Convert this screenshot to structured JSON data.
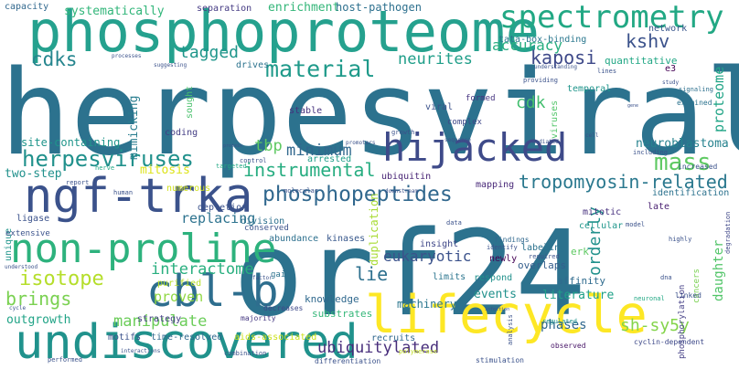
{
  "words": [
    {
      "text": "herpesviral",
      "color": "#2c728e"
    },
    {
      "text": "orf24",
      "color": "#2c728e"
    },
    {
      "text": "lifecycle",
      "color": "#fde725"
    },
    {
      "text": "phosphoproteome",
      "color": "#25a18e"
    },
    {
      "text": "undiscovered",
      "color": "#20928c"
    },
    {
      "text": "ngf-trka",
      "color": "#3b528b"
    },
    {
      "text": "non-proline",
      "color": "#2db27d"
    },
    {
      "text": "hijacked",
      "color": "#3e4a89"
    },
    {
      "text": "cbl-b",
      "color": "#2e6e8e"
    },
    {
      "text": "spectrometry",
      "color": "#22a884"
    },
    {
      "text": "mass",
      "color": "#5ec962"
    },
    {
      "text": "material",
      "color": "#1f9a8a"
    },
    {
      "text": "phosphopeptides",
      "color": "#31688e"
    },
    {
      "text": "herpesviruses",
      "color": "#21918c"
    },
    {
      "text": "isotope",
      "color": "#b5de2b"
    },
    {
      "text": "brings",
      "color": "#7ad151"
    },
    {
      "text": "tropomyosin-related",
      "color": "#2a788e"
    },
    {
      "text": "instrumental",
      "color": "#27ad81"
    },
    {
      "text": "orderly",
      "color": "#21918c"
    },
    {
      "text": "interactome",
      "color": "#29af7f"
    },
    {
      "text": "manipulate",
      "color": "#6ccd5a"
    },
    {
      "text": "proven",
      "color": "#90d743"
    },
    {
      "text": "ubiquitylated",
      "color": "#472d7b"
    },
    {
      "text": "sh-sy5y",
      "color": "#84d44b"
    },
    {
      "text": "kshv",
      "color": "#3b528b"
    },
    {
      "text": "kaposi",
      "color": "#3e4989"
    },
    {
      "text": "cdks",
      "color": "#25858e"
    },
    {
      "text": "tagged",
      "color": "#1f968b"
    },
    {
      "text": "neurites",
      "color": "#1f9e89"
    },
    {
      "text": "accuracy",
      "color": "#28ae80"
    },
    {
      "text": "cdk",
      "color": "#44bf70"
    },
    {
      "text": "minimum",
      "color": "#31688e"
    },
    {
      "text": "eukaryotic",
      "color": "#3b528b"
    },
    {
      "text": "tbp",
      "color": "#5ec962"
    },
    {
      "text": "lie",
      "color": "#2d708e"
    },
    {
      "text": "phases",
      "color": "#31688e"
    },
    {
      "text": "replacing",
      "color": "#2c728e"
    },
    {
      "text": "outgrowth",
      "color": "#20a386"
    },
    {
      "text": "enrichment",
      "color": "#34b679"
    },
    {
      "text": "systematically",
      "color": "#32b67a"
    },
    {
      "text": "mimicking",
      "color": "#287d8e"
    },
    {
      "text": "daughter",
      "color": "#52c569"
    },
    {
      "text": "proteome",
      "color": "#20a486"
    },
    {
      "text": "mitosis",
      "color": "#dde318"
    },
    {
      "text": "neuroblastoma",
      "color": "#26828e"
    },
    {
      "text": "events",
      "color": "#21918c"
    },
    {
      "text": "literature",
      "color": "#1fa188"
    },
    {
      "text": "machinery",
      "color": "#2a768e"
    },
    {
      "text": "duplication",
      "color": "#a8db34"
    },
    {
      "text": "two-step",
      "color": "#21918c"
    },
    {
      "text": "site-containing",
      "color": "#1f958b"
    },
    {
      "text": "quantitative",
      "color": "#22a785"
    },
    {
      "text": "host-pathogen",
      "color": "#2d708e"
    },
    {
      "text": "separation",
      "color": "#443a83"
    },
    {
      "text": "capacity",
      "color": "#31688e"
    },
    {
      "text": "tata-box-binding",
      "color": "#2a778e"
    },
    {
      "text": "network",
      "color": "#39568c"
    },
    {
      "text": "ubiquitin",
      "color": "#482475"
    },
    {
      "text": "mapping",
      "color": "#482878"
    },
    {
      "text": "mitotic",
      "color": "#46307e"
    },
    {
      "text": "cellular",
      "color": "#1f968b"
    },
    {
      "text": "identification",
      "color": "#2c728e"
    },
    {
      "text": "late",
      "color": "#481f70"
    },
    {
      "text": "labeling",
      "color": "#2c728e"
    },
    {
      "text": "overlaps",
      "color": "#355f8d"
    },
    {
      "text": "insight",
      "color": "#3f4788"
    },
    {
      "text": "newly",
      "color": "#440154"
    },
    {
      "text": "limits",
      "color": "#2b758e"
    },
    {
      "text": "respond",
      "color": "#21918c"
    },
    {
      "text": "affinity",
      "color": "#2f6b8e"
    },
    {
      "text": "erk",
      "color": "#5ec962"
    },
    {
      "text": "knowledge",
      "color": "#30698e"
    },
    {
      "text": "substrates",
      "color": "#35b779"
    },
    {
      "text": "recruits",
      "color": "#31688e"
    },
    {
      "text": "time-resolved",
      "color": "#31688e"
    },
    {
      "text": "aids-associated",
      "color": "#cde11d"
    },
    {
      "text": "motifs",
      "color": "#3b528b"
    },
    {
      "text": "strategy",
      "color": "#433e85"
    },
    {
      "text": "abundance",
      "color": "#2d708e"
    },
    {
      "text": "kinases",
      "color": "#38588c"
    },
    {
      "text": "division",
      "color": "#2d708e"
    },
    {
      "text": "purified",
      "color": "#b8de29"
    },
    {
      "text": "depletion",
      "color": "#3b528b"
    },
    {
      "text": "coding",
      "color": "#433d84"
    },
    {
      "text": "sought",
      "color": "#4ac16d"
    },
    {
      "text": "viral",
      "color": "#3b528b"
    },
    {
      "text": "stable",
      "color": "#46327e"
    },
    {
      "text": "arrested",
      "color": "#1f9e89"
    },
    {
      "text": "drives",
      "color": "#2c738e"
    },
    {
      "text": "temporal",
      "color": "#1f958b"
    },
    {
      "text": "e3",
      "color": "#440154"
    },
    {
      "text": "formed",
      "color": "#463480"
    },
    {
      "text": "complex",
      "color": "#3f4889"
    },
    {
      "text": "unique",
      "color": "#1f958b"
    },
    {
      "text": "ligase",
      "color": "#3b528b"
    },
    {
      "text": "extensive",
      "color": "#3b528b"
    },
    {
      "text": "gain",
      "color": "#2c738e"
    },
    {
      "text": "conserved",
      "color": "#3b528b"
    },
    {
      "text": "decreases",
      "color": "#3e4989"
    },
    {
      "text": "majority",
      "color": "#453882"
    },
    {
      "text": "cancers",
      "color": "#7ad151"
    },
    {
      "text": "phosphorylation",
      "color": "#433e85"
    },
    {
      "text": "cyclin-dependent",
      "color": "#3e4989"
    },
    {
      "text": "differentiation",
      "color": "#3b528b"
    },
    {
      "text": "observed",
      "color": "#481668"
    },
    {
      "text": "regulated",
      "color": "#1f948c"
    },
    {
      "text": "neuronal",
      "color": "#22a884"
    },
    {
      "text": "increased",
      "color": "#3b528b"
    },
    {
      "text": "examined",
      "color": "#2c738e"
    },
    {
      "text": "including",
      "color": "#3b528b"
    },
    {
      "text": "signaling",
      "color": "#2d708e"
    },
    {
      "text": "degradation",
      "color": "#3f4788"
    },
    {
      "text": "findings",
      "color": "#31688e"
    },
    {
      "text": "required",
      "color": "#3b528b"
    },
    {
      "text": "highly",
      "color": "#3b528b"
    },
    {
      "text": "analysis",
      "color": "#3b528b"
    },
    {
      "text": "stimulation",
      "color": "#3b528b"
    },
    {
      "text": "performed",
      "color": "#3b528b"
    },
    {
      "text": "combination",
      "color": "#3b528b"
    },
    {
      "text": "interactions",
      "color": "#3b528b"
    },
    {
      "text": "polymerase",
      "color": "#c2df23"
    },
    {
      "text": "understood",
      "color": "#3b528b"
    },
    {
      "text": "numerous",
      "color": "#d0e11c"
    },
    {
      "text": "targeted",
      "color": "#22a884"
    },
    {
      "text": "report",
      "color": "#3b528b"
    },
    {
      "text": "human",
      "color": "#3b528b"
    },
    {
      "text": "nerve",
      "color": "#22a884"
    },
    {
      "text": "control",
      "color": "#3b528b"
    },
    {
      "text": "molecular",
      "color": "#3b528b"
    },
    {
      "text": "downstream",
      "color": "#3b528b"
    },
    {
      "text": "promoters",
      "color": "#3b528b"
    },
    {
      "text": "growth",
      "color": "#3b528b"
    },
    {
      "text": "sequence",
      "color": "#3b528b"
    },
    {
      "text": "mediated",
      "color": "#3b528b"
    },
    {
      "text": "cell",
      "color": "#3b528b"
    },
    {
      "text": "processes",
      "color": "#3b528b"
    },
    {
      "text": "suggesting",
      "color": "#3b528b"
    },
    {
      "text": "providing",
      "color": "#3b528b"
    },
    {
      "text": "understanding",
      "color": "#3b528b"
    },
    {
      "text": "lines",
      "color": "#3b528b"
    },
    {
      "text": "study",
      "color": "#3b528b"
    },
    {
      "text": "gene",
      "color": "#3b528b"
    },
    {
      "text": "viruses",
      "color": "#52c569"
    },
    {
      "text": "data",
      "color": "#3b528b"
    },
    {
      "text": "identify",
      "color": "#3b528b"
    },
    {
      "text": "model",
      "color": "#3b528b"
    },
    {
      "text": "dna",
      "color": "#3b528b"
    },
    {
      "text": "linked",
      "color": "#3b528b"
    },
    {
      "text": "factor",
      "color": "#3b528b"
    },
    {
      "text": "cycle",
      "color": "#3b528b"
    },
    {
      "text": "protein",
      "color": "#3b528b"
    },
    {
      "text": "infection",
      "color": "#3b528b"
    }
  ]
}
